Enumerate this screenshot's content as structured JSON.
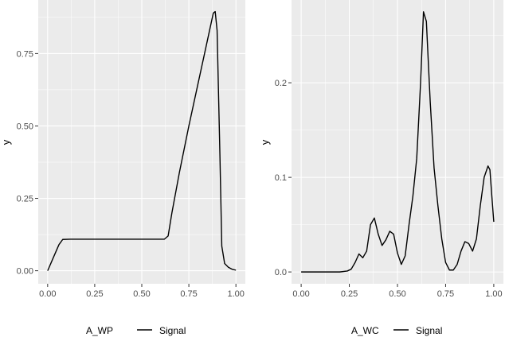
{
  "chart_data": [
    {
      "type": "line",
      "ylabel": "y",
      "xlim": [
        -0.05,
        1.05
      ],
      "ylim": [
        -0.045,
        0.935
      ],
      "x_ticks": [
        0.0,
        0.25,
        0.5,
        0.75,
        1.0
      ],
      "x_tick_labels": [
        "0.00",
        "0.25",
        "0.50",
        "0.75",
        "1.00"
      ],
      "y_ticks": [
        0.0,
        0.25,
        0.5,
        0.75
      ],
      "y_tick_labels": [
        "0.00",
        "0.25",
        "0.50",
        "0.75"
      ],
      "grid": true,
      "legend": {
        "title": "A_WP",
        "placement": "bottom",
        "entries": [
          "Signal"
        ]
      },
      "series": [
        {
          "name": "Signal",
          "x": [
            0.0,
            0.03,
            0.06,
            0.08,
            0.12,
            0.3,
            0.5,
            0.62,
            0.64,
            0.66,
            0.7,
            0.75,
            0.8,
            0.85,
            0.87,
            0.88,
            0.89,
            0.9,
            0.915,
            0.925,
            0.94,
            0.96,
            0.98,
            1.0
          ],
          "y": [
            0.0,
            0.045,
            0.09,
            0.108,
            0.109,
            0.109,
            0.109,
            0.109,
            0.12,
            0.2,
            0.34,
            0.5,
            0.65,
            0.8,
            0.86,
            0.89,
            0.895,
            0.83,
            0.4,
            0.085,
            0.025,
            0.012,
            0.005,
            0.002
          ]
        }
      ]
    },
    {
      "type": "line",
      "ylabel": "y",
      "xlim": [
        -0.05,
        1.05
      ],
      "ylim": [
        -0.0125,
        0.2875
      ],
      "x_ticks": [
        0.0,
        0.25,
        0.5,
        0.75,
        1.0
      ],
      "x_tick_labels": [
        "0.00",
        "0.25",
        "0.50",
        "0.75",
        "1.00"
      ],
      "y_ticks": [
        0.0,
        0.1,
        0.2
      ],
      "y_tick_labels": [
        "0.0",
        "0.1",
        "0.2"
      ],
      "grid": true,
      "legend": {
        "title": "A_WC",
        "placement": "bottom",
        "entries": [
          "Signal"
        ]
      },
      "series": [
        {
          "name": "Signal",
          "x": [
            0.0,
            0.1,
            0.2,
            0.24,
            0.26,
            0.28,
            0.3,
            0.32,
            0.34,
            0.36,
            0.38,
            0.4,
            0.42,
            0.44,
            0.46,
            0.48,
            0.5,
            0.52,
            0.54,
            0.56,
            0.58,
            0.6,
            0.62,
            0.635,
            0.65,
            0.67,
            0.69,
            0.71,
            0.73,
            0.75,
            0.77,
            0.79,
            0.81,
            0.83,
            0.85,
            0.87,
            0.89,
            0.91,
            0.93,
            0.95,
            0.97,
            0.98,
            0.99,
            1.0
          ],
          "y": [
            0.0,
            0.0,
            0.0,
            0.001,
            0.003,
            0.01,
            0.019,
            0.015,
            0.022,
            0.05,
            0.057,
            0.04,
            0.028,
            0.034,
            0.043,
            0.04,
            0.02,
            0.008,
            0.017,
            0.05,
            0.08,
            0.12,
            0.2,
            0.275,
            0.265,
            0.18,
            0.11,
            0.07,
            0.035,
            0.01,
            0.002,
            0.002,
            0.008,
            0.022,
            0.032,
            0.03,
            0.022,
            0.035,
            0.07,
            0.1,
            0.112,
            0.108,
            0.08,
            0.053
          ]
        }
      ]
    }
  ]
}
